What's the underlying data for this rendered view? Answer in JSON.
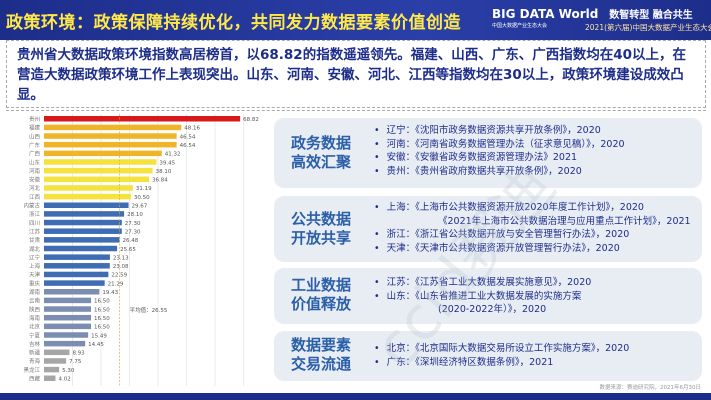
{
  "header": {
    "title": "政策环境：政策保障持续优化，共同发力数据要素价值创造",
    "logo": "BIG DATA World",
    "logo_sub": "中国大数据产业生态大会",
    "slogan": "数智转型 融合共生",
    "conference": "2021(第六届)中国大数据产业生态大会"
  },
  "summary": "贵州省大数据政策环境指数高居榜首，以68.82的指数遥遥领先。福建、山西、广东、广西指数均在40以上，在营造大数据政策环境工作上表现突出。山东、河南、安徽、河北、江西等指数均在30以上，政策环境建设成效凸显。",
  "chart_data": {
    "type": "bar",
    "orientation": "horizontal",
    "categories": [
      "贵州",
      "福建",
      "山西",
      "广东",
      "广西",
      "山东",
      "河南",
      "安徽",
      "河北",
      "江西",
      "内蒙古",
      "浙江",
      "四川",
      "江苏",
      "甘肃",
      "湖北",
      "辽宁",
      "上海",
      "天津",
      "重庆",
      "湖南",
      "云南",
      "陕西",
      "海南",
      "北京",
      "宁夏",
      "吉林",
      "新疆",
      "青海",
      "黑龙江",
      "西藏"
    ],
    "values": [
      68.82,
      48.16,
      46.54,
      46.54,
      41.32,
      39.45,
      38.1,
      36.84,
      31.19,
      30.5,
      29.67,
      28.1,
      27.3,
      27.3,
      26.48,
      25.65,
      23.13,
      23.08,
      22.59,
      21.29,
      19.43,
      16.5,
      16.5,
      16.5,
      16.5,
      15.49,
      14.45,
      8.93,
      7.75,
      5.3,
      4.02
    ],
    "colors": [
      "#d7191c",
      "#f0b429",
      "#f0b429",
      "#f0b429",
      "#f0b429",
      "#f5e23c",
      "#f5e23c",
      "#f5e23c",
      "#f5e23c",
      "#f5e23c",
      "#3e6db3",
      "#3e6db3",
      "#3e6db3",
      "#3e6db3",
      "#3e6db3",
      "#3e6db3",
      "#3e6db3",
      "#3e6db3",
      "#3e6db3",
      "#3e6db3",
      "#7b8db0",
      "#7b8db0",
      "#7b8db0",
      "#7b8db0",
      "#7b8db0",
      "#7b8db0",
      "#7b8db0",
      "#a6a6a6",
      "#a6a6a6",
      "#a6a6a6",
      "#a6a6a6"
    ],
    "average": 26.55,
    "average_label": "平均值：26.55",
    "xlim": [
      0,
      70
    ],
    "grid": true
  },
  "panels": [
    {
      "title": [
        "政务数据",
        "高效汇聚"
      ],
      "items": [
        "辽宁：《沈阳市政务数据资源共享开放条例》，2020",
        "河南：《河南省政务数据管理办法（征求意见稿）》，2020",
        "安徽：《安徽省政务数据资源管理办法》2021",
        "贵州：《贵州省政府数据共享开放条例》，2020"
      ]
    },
    {
      "title": [
        "公共数据",
        "开放共享"
      ],
      "items": [
        "上海：《上海市公共数据资源开放2020年度工作计划》，2020",
        "《2021年上海市公共数据治理与应用重点工作计划》，2021",
        "浙江：《浙江省公共数据开放与安全管理暂行办法》，2020",
        "天津：《天津市公共数据资源开放管理暂行办法》，2020"
      ]
    },
    {
      "title": [
        "工业数据",
        "价值释放"
      ],
      "items": [
        "江苏：《江苏省工业大数据发展实施意见》，2020",
        "山东：《山东省推进工业大数据发展的实施方案",
        "(2020-2022年）》，2020"
      ]
    },
    {
      "title": [
        "数据要素",
        "交易流通"
      ],
      "items": [
        "北京：《北京国际大数据交易所设立工作实施方案》，2020",
        "广东：《深圳经济特区数据条例》，2021"
      ]
    }
  ],
  "source": "数据来源：赛迪研究院，2021年6月30日",
  "watermark": "ccid赛迪"
}
